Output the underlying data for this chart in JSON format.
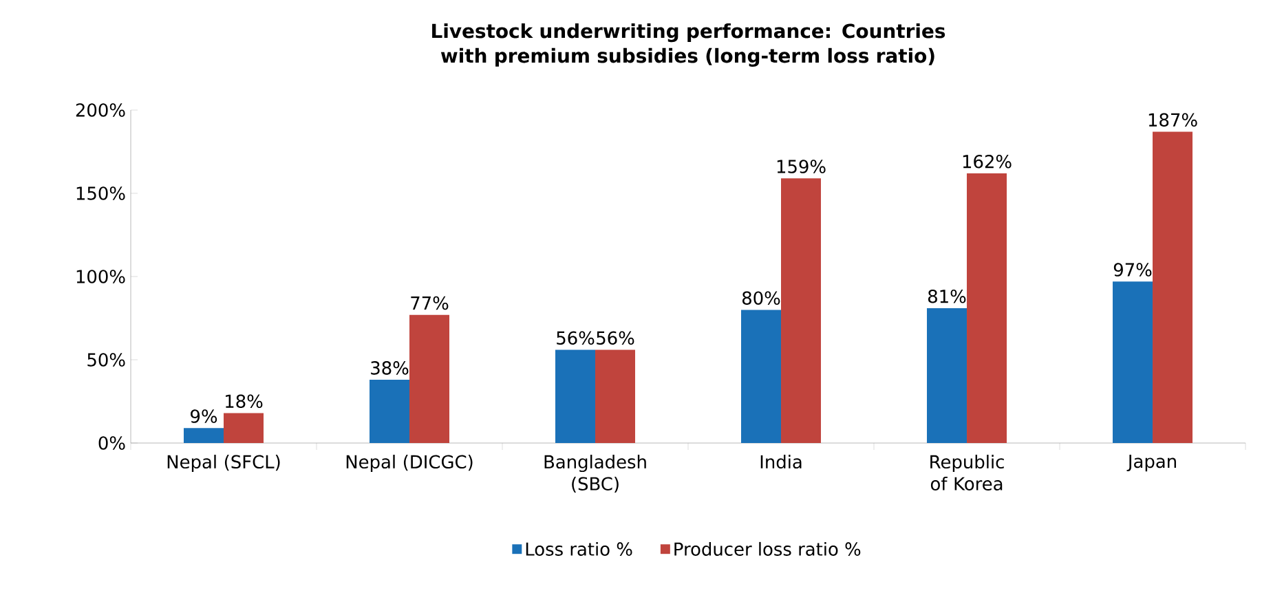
{
  "chart_data": {
    "type": "bar",
    "title": "Livestock underwriting performance: Countries with premium subsidies (long-term loss ratio)",
    "categories": [
      "Nepal (SFCL)",
      "Nepal (DICGC)",
      "Bangladesh (SBC)",
      "India",
      "Republic of Korea",
      "Japan"
    ],
    "series": [
      {
        "name": "Loss ratio %",
        "color": "#1a71b8",
        "values": [
          9,
          38,
          56,
          80,
          81,
          97
        ],
        "value_labels": [
          "9%",
          "38%",
          "56%",
          "80%",
          "81%",
          "97%"
        ]
      },
      {
        "name": "Producer loss ratio %",
        "color": "#c0443d",
        "values": [
          18,
          77,
          56,
          159,
          162,
          187
        ],
        "value_labels": [
          "18%",
          "77%",
          "56%",
          "159%",
          "162%",
          "187%"
        ]
      }
    ],
    "ylim": [
      0,
      200
    ],
    "yticks": [
      {
        "value": 0,
        "label": "0%"
      },
      {
        "value": 50,
        "label": "50%"
      },
      {
        "value": 100,
        "label": "100%"
      },
      {
        "value": 150,
        "label": "150%"
      },
      {
        "value": 200,
        "label": "200%"
      }
    ],
    "legend": "bottom",
    "grid": false
  }
}
